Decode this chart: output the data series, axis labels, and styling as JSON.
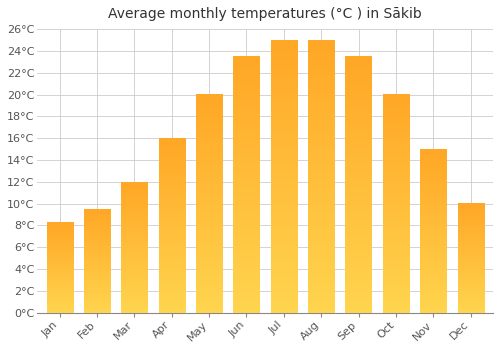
{
  "title": "Average monthly temperatures (°C ) in Sākib",
  "months": [
    "Jan",
    "Feb",
    "Mar",
    "Apr",
    "May",
    "Jun",
    "Jul",
    "Aug",
    "Sep",
    "Oct",
    "Nov",
    "Dec"
  ],
  "temperatures": [
    8.3,
    9.5,
    12.0,
    16.0,
    20.0,
    23.5,
    25.0,
    25.0,
    23.5,
    20.0,
    15.0,
    10.0
  ],
  "bar_color": "#FFA726",
  "bar_color_light": "#FFD54F",
  "ylim": [
    0,
    26
  ],
  "yticks": [
    0,
    2,
    4,
    6,
    8,
    10,
    12,
    14,
    16,
    18,
    20,
    22,
    24,
    26
  ],
  "ytick_labels": [
    "0°C",
    "2°C",
    "4°C",
    "6°C",
    "8°C",
    "10°C",
    "12°C",
    "14°C",
    "16°C",
    "18°C",
    "20°C",
    "22°C",
    "24°C",
    "26°C"
  ],
  "background_color": "#ffffff",
  "grid_color": "#cccccc",
  "title_fontsize": 10,
  "tick_fontsize": 8,
  "bar_width": 0.7
}
